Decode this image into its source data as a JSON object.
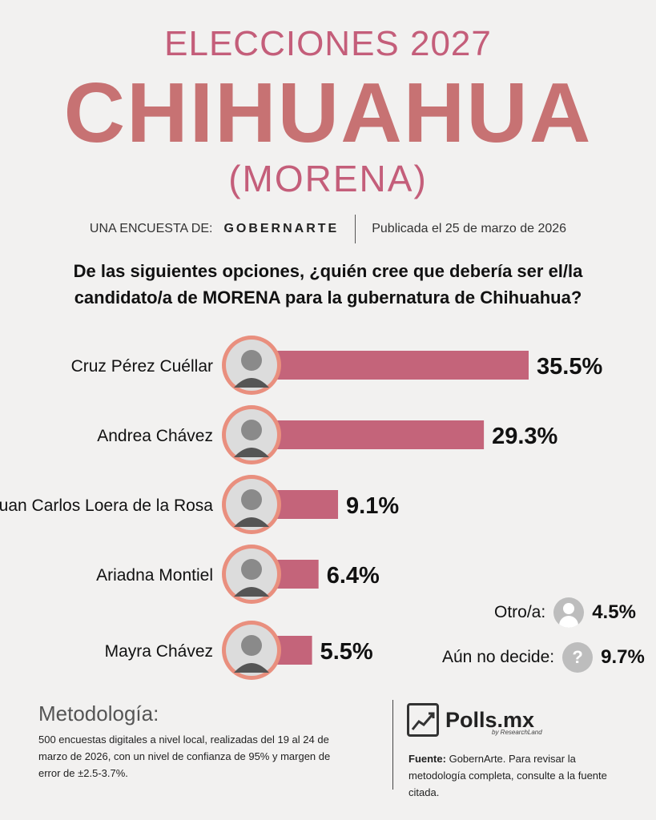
{
  "header": {
    "kicker": "ELECCIONES 2027",
    "title": "CHIHUAHUA",
    "party": "(MORENA)"
  },
  "byline": {
    "prefix": "UNA ENCUESTA DE:",
    "brand": "GOBERNARTE",
    "published": "Publicada el 25 de marzo de 2026"
  },
  "question": "De las siguientes opciones, ¿quién cree que debería ser el/la candidato/a de MORENA para la gubernatura de Chihuahua?",
  "chart_data": {
    "type": "bar",
    "orientation": "horizontal",
    "categories": [
      "Cruz Pérez Cuéllar",
      "Andrea Chávez",
      "Juan Carlos Loera de la Rosa",
      "Ariadna Montiel",
      "Mayra Chávez"
    ],
    "values": [
      35.5,
      29.3,
      9.1,
      6.4,
      5.5
    ],
    "value_labels": [
      "35.5%",
      "29.3%",
      "9.1%",
      "6.4%",
      "5.5%"
    ],
    "bar_color": "#c4647a",
    "avatar_ring_color": "#e98f7e",
    "unit": "%"
  },
  "others": [
    {
      "label": "Otro/a:",
      "value": "4.5%",
      "icon": "person-icon"
    },
    {
      "label": "Aún no decide:",
      "value": "9.7%",
      "icon": "question-icon",
      "glyph": "?"
    }
  ],
  "methodology": {
    "title": "Metodología:",
    "text": "500 encuestas digitales a nivel local, realizadas del 19 al 24 de marzo de 2026, con un nivel de confianza de 95% y margen de error de ±2.5-3.7%."
  },
  "logo": {
    "name": "Polls.mx",
    "sub": "by ResearchLand"
  },
  "source": {
    "label": "Fuente:",
    "text": "GobernArte. Para revisar la metodología completa, consulte a la fuente citada."
  }
}
